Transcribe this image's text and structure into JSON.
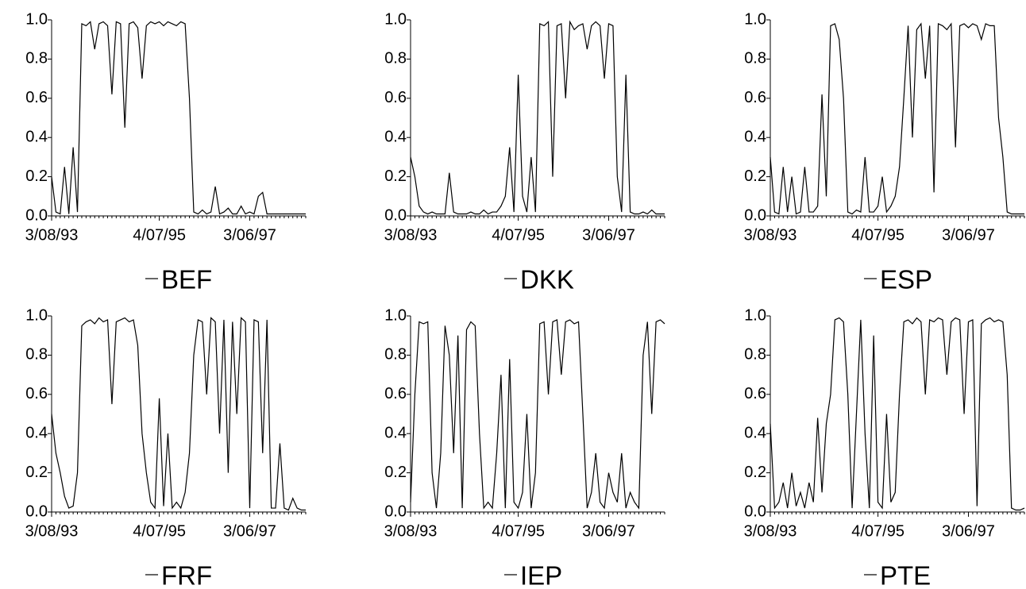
{
  "chart_data": [
    {
      "type": "line",
      "categories": [
        "3/08/93",
        null,
        null,
        null,
        null,
        null,
        null,
        null,
        null,
        null,
        null,
        null,
        null,
        null,
        null,
        null,
        null,
        null,
        null,
        null,
        null,
        null,
        null,
        null,
        null,
        "4/07/95",
        null,
        null,
        null,
        null,
        null,
        null,
        null,
        null,
        null,
        null,
        null,
        null,
        null,
        null,
        null,
        null,
        null,
        null,
        null,
        null,
        "3/06/97",
        null,
        null,
        null,
        null,
        null,
        null,
        null,
        null,
        null,
        null,
        null,
        null,
        null
      ],
      "series": [
        {
          "name": "BEF",
          "color": "#000000",
          "values": [
            0.2,
            0.02,
            0.01,
            0.25,
            0.01,
            0.35,
            0.02,
            0.98,
            0.97,
            0.99,
            0.85,
            0.98,
            0.99,
            0.97,
            0.62,
            0.99,
            0.98,
            0.45,
            0.98,
            0.99,
            0.96,
            0.7,
            0.97,
            0.99,
            0.98,
            0.99,
            0.97,
            0.99,
            0.98,
            0.97,
            0.99,
            0.98,
            0.6,
            0.02,
            0.01,
            0.03,
            0.01,
            0.02,
            0.15,
            0.01,
            0.02,
            0.04,
            0.01,
            0.01,
            0.05,
            0.01,
            0.02,
            0.01,
            0.1,
            0.12,
            0.01,
            0.01,
            0.01,
            0.01,
            0.01,
            0.01,
            0.01,
            0.01,
            0.01,
            0.01
          ]
        }
      ],
      "ylim": [
        0,
        1
      ],
      "yticks": [
        {
          "value": 0,
          "label": "0.0"
        },
        0.2,
        0.4,
        0.6,
        0.8,
        {
          "value": 1,
          "label": "1.0"
        }
      ]
    },
    {
      "type": "line",
      "categories": [
        "3/08/93",
        null,
        null,
        null,
        null,
        null,
        null,
        null,
        null,
        null,
        null,
        null,
        null,
        null,
        null,
        null,
        null,
        null,
        null,
        null,
        null,
        null,
        null,
        null,
        null,
        "4/07/95",
        null,
        null,
        null,
        null,
        null,
        null,
        null,
        null,
        null,
        null,
        null,
        null,
        null,
        null,
        null,
        null,
        null,
        null,
        null,
        null,
        "3/06/97",
        null,
        null,
        null,
        null,
        null,
        null,
        null,
        null,
        null,
        null,
        null,
        null,
        null
      ],
      "series": [
        {
          "name": "DKK",
          "color": "#000000",
          "values": [
            0.3,
            0.2,
            0.05,
            0.02,
            0.01,
            0.02,
            0.01,
            0.01,
            0.01,
            0.22,
            0.02,
            0.01,
            0.01,
            0.01,
            0.02,
            0.01,
            0.01,
            0.03,
            0.01,
            0.02,
            0.02,
            0.05,
            0.1,
            0.35,
            0.02,
            0.72,
            0.1,
            0.02,
            0.3,
            0.02,
            0.98,
            0.97,
            0.99,
            0.2,
            0.97,
            0.98,
            0.6,
            0.99,
            0.95,
            0.97,
            0.98,
            0.85,
            0.97,
            0.99,
            0.97,
            0.7,
            0.98,
            0.97,
            0.2,
            0.02,
            0.72,
            0.02,
            0.01,
            0.01,
            0.02,
            0.01,
            0.03,
            0.01,
            0.01,
            0.01
          ]
        }
      ],
      "ylim": [
        0,
        1
      ],
      "yticks": [
        {
          "value": 0,
          "label": "0.0"
        },
        0.2,
        0.4,
        0.6,
        0.8,
        {
          "value": 1,
          "label": "1.0"
        }
      ]
    },
    {
      "type": "line",
      "categories": [
        "3/08/93",
        null,
        null,
        null,
        null,
        null,
        null,
        null,
        null,
        null,
        null,
        null,
        null,
        null,
        null,
        null,
        null,
        null,
        null,
        null,
        null,
        null,
        null,
        null,
        null,
        "4/07/95",
        null,
        null,
        null,
        null,
        null,
        null,
        null,
        null,
        null,
        null,
        null,
        null,
        null,
        null,
        null,
        null,
        null,
        null,
        null,
        null,
        "3/06/97",
        null,
        null,
        null,
        null,
        null,
        null,
        null,
        null,
        null,
        null,
        null,
        null,
        null
      ],
      "series": [
        {
          "name": "ESP",
          "color": "#000000",
          "values": [
            0.3,
            0.02,
            0.01,
            0.25,
            0.02,
            0.2,
            0.01,
            0.02,
            0.25,
            0.02,
            0.02,
            0.05,
            0.62,
            0.1,
            0.97,
            0.98,
            0.9,
            0.6,
            0.02,
            0.01,
            0.03,
            0.02,
            0.3,
            0.02,
            0.02,
            0.05,
            0.2,
            0.02,
            0.05,
            0.1,
            0.25,
            0.6,
            0.97,
            0.4,
            0.95,
            0.98,
            0.7,
            0.97,
            0.12,
            0.98,
            0.97,
            0.95,
            0.98,
            0.35,
            0.97,
            0.98,
            0.96,
            0.98,
            0.97,
            0.9,
            0.98,
            0.97,
            0.97,
            0.5,
            0.3,
            0.02,
            0.01,
            0.01,
            0.01,
            0.01
          ]
        }
      ],
      "ylim": [
        0,
        1
      ],
      "yticks": [
        {
          "value": 0,
          "label": "0.0"
        },
        0.2,
        0.4,
        0.6,
        0.8,
        {
          "value": 1,
          "label": "1.0"
        }
      ]
    },
    {
      "type": "line",
      "categories": [
        "3/08/93",
        null,
        null,
        null,
        null,
        null,
        null,
        null,
        null,
        null,
        null,
        null,
        null,
        null,
        null,
        null,
        null,
        null,
        null,
        null,
        null,
        null,
        null,
        null,
        null,
        "4/07/95",
        null,
        null,
        null,
        null,
        null,
        null,
        null,
        null,
        null,
        null,
        null,
        null,
        null,
        null,
        null,
        null,
        null,
        null,
        null,
        null,
        "3/06/97",
        null,
        null,
        null,
        null,
        null,
        null,
        null,
        null,
        null,
        null,
        null,
        null,
        null
      ],
      "series": [
        {
          "name": "FRF",
          "color": "#000000",
          "values": [
            0.5,
            0.3,
            0.2,
            0.08,
            0.02,
            0.03,
            0.2,
            0.95,
            0.97,
            0.98,
            0.96,
            0.99,
            0.97,
            0.98,
            0.55,
            0.97,
            0.98,
            0.99,
            0.97,
            0.98,
            0.85,
            0.4,
            0.2,
            0.05,
            0.02,
            0.58,
            0.03,
            0.4,
            0.02,
            0.05,
            0.02,
            0.1,
            0.3,
            0.8,
            0.98,
            0.97,
            0.6,
            0.99,
            0.97,
            0.4,
            0.98,
            0.2,
            0.97,
            0.5,
            0.99,
            0.97,
            0.02,
            0.98,
            0.97,
            0.3,
            0.98,
            0.02,
            0.02,
            0.35,
            0.02,
            0.01,
            0.07,
            0.02,
            0.01,
            0.01
          ]
        }
      ],
      "ylim": [
        0,
        1
      ],
      "yticks": [
        {
          "value": 0,
          "label": "0.0"
        },
        0.2,
        0.4,
        0.6,
        0.8,
        {
          "value": 1,
          "label": "1.0"
        }
      ]
    },
    {
      "type": "line",
      "categories": [
        "3/08/93",
        null,
        null,
        null,
        null,
        null,
        null,
        null,
        null,
        null,
        null,
        null,
        null,
        null,
        null,
        null,
        null,
        null,
        null,
        null,
        null,
        null,
        null,
        null,
        null,
        "4/07/95",
        null,
        null,
        null,
        null,
        null,
        null,
        null,
        null,
        null,
        null,
        null,
        null,
        null,
        null,
        null,
        null,
        null,
        null,
        null,
        null,
        "3/06/97",
        null,
        null,
        null,
        null,
        null,
        null,
        null,
        null,
        null,
        null,
        null,
        null,
        null
      ],
      "series": [
        {
          "name": "IEP",
          "color": "#000000",
          "values": [
            0.05,
            0.6,
            0.97,
            0.96,
            0.97,
            0.2,
            0.02,
            0.3,
            0.95,
            0.8,
            0.3,
            0.9,
            0.02,
            0.93,
            0.97,
            0.95,
            0.4,
            0.02,
            0.05,
            0.02,
            0.3,
            0.7,
            0.02,
            0.78,
            0.05,
            0.02,
            0.1,
            0.5,
            0.02,
            0.2,
            0.96,
            0.97,
            0.6,
            0.97,
            0.98,
            0.7,
            0.97,
            0.98,
            0.96,
            0.97,
            0.5,
            0.02,
            0.1,
            0.3,
            0.05,
            0.02,
            0.2,
            0.1,
            0.05,
            0.3,
            0.02,
            0.1,
            0.05,
            0.02,
            0.8,
            0.97,
            0.5,
            0.97,
            0.98,
            0.96
          ]
        }
      ],
      "ylim": [
        0,
        1
      ],
      "yticks": [
        {
          "value": 0,
          "label": "0.0"
        },
        0.2,
        0.4,
        0.6,
        0.8,
        {
          "value": 1,
          "label": "1.0"
        }
      ]
    },
    {
      "type": "line",
      "categories": [
        "3/08/93",
        null,
        null,
        null,
        null,
        null,
        null,
        null,
        null,
        null,
        null,
        null,
        null,
        null,
        null,
        null,
        null,
        null,
        null,
        null,
        null,
        null,
        null,
        null,
        null,
        "4/07/95",
        null,
        null,
        null,
        null,
        null,
        null,
        null,
        null,
        null,
        null,
        null,
        null,
        null,
        null,
        null,
        null,
        null,
        null,
        null,
        null,
        "3/06/97",
        null,
        null,
        null,
        null,
        null,
        null,
        null,
        null,
        null,
        null,
        null,
        null,
        null
      ],
      "series": [
        {
          "name": "PTE",
          "color": "#000000",
          "values": [
            0.45,
            0.02,
            0.05,
            0.15,
            0.02,
            0.2,
            0.03,
            0.1,
            0.02,
            0.15,
            0.05,
            0.48,
            0.1,
            0.45,
            0.6,
            0.98,
            0.99,
            0.97,
            0.6,
            0.02,
            0.5,
            0.98,
            0.4,
            0.02,
            0.9,
            0.05,
            0.02,
            0.5,
            0.05,
            0.1,
            0.6,
            0.97,
            0.98,
            0.96,
            0.99,
            0.97,
            0.6,
            0.98,
            0.97,
            0.99,
            0.98,
            0.7,
            0.97,
            0.99,
            0.98,
            0.5,
            0.97,
            0.98,
            0.03,
            0.96,
            0.98,
            0.99,
            0.97,
            0.98,
            0.97,
            0.7,
            0.02,
            0.01,
            0.01,
            0.02
          ]
        }
      ],
      "ylim": [
        0,
        1
      ],
      "yticks": [
        {
          "value": 0,
          "label": "0.0"
        },
        0.2,
        0.4,
        0.6,
        0.8,
        {
          "value": 1,
          "label": "1.0"
        }
      ]
    }
  ]
}
